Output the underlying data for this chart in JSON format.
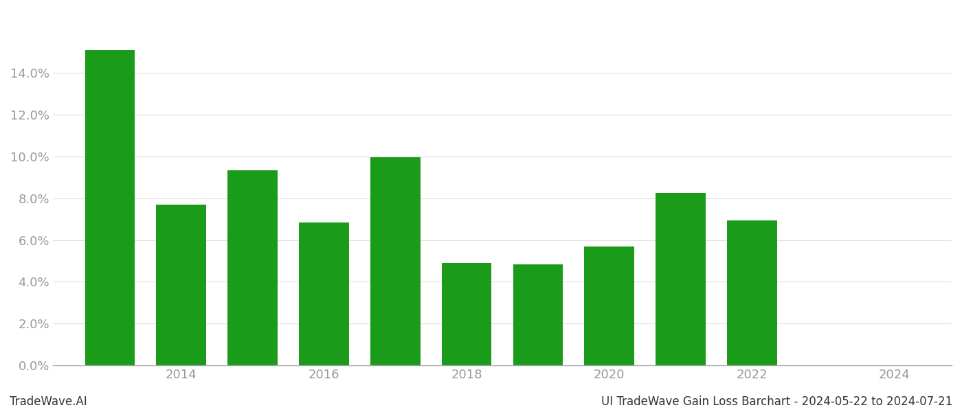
{
  "years": [
    2013,
    2014,
    2015,
    2016,
    2017,
    2018,
    2019,
    2020,
    2021,
    2022,
    2023
  ],
  "values": [
    0.151,
    0.077,
    0.0935,
    0.0685,
    0.0995,
    0.049,
    0.0485,
    0.057,
    0.0825,
    0.0695,
    0.0
  ],
  "bar_color": "#1a9b1a",
  "background_color": "#ffffff",
  "ylabel_color": "#999999",
  "xlabel_color": "#999999",
  "grid_color": "#dddddd",
  "xticks": [
    2014,
    2016,
    2018,
    2020,
    2022,
    2024
  ],
  "xlim": [
    2012.2,
    2024.8
  ],
  "ylim": [
    0,
    0.17
  ],
  "yticks": [
    0.0,
    0.02,
    0.04,
    0.06,
    0.08,
    0.1,
    0.12,
    0.14
  ],
  "footer_left": "TradeWave.AI",
  "footer_right": "UI TradeWave Gain Loss Barchart - 2024-05-22 to 2024-07-21",
  "footer_fontsize": 12,
  "tick_fontsize": 13,
  "bar_width": 0.7
}
